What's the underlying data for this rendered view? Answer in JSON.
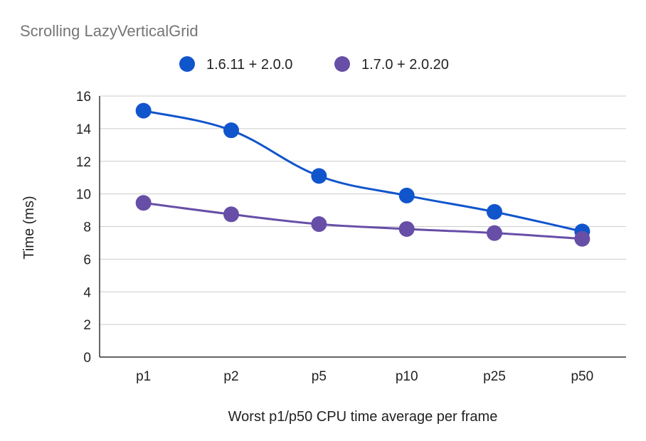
{
  "chart_data": {
    "type": "line",
    "title": "Scrolling LazyVerticalGrid",
    "xlabel": "Worst p1/p50 CPU time average per frame",
    "ylabel": "Time (ms)",
    "categories": [
      "p1",
      "p2",
      "p5",
      "p10",
      "p25",
      "p50"
    ],
    "ylim": [
      0,
      16
    ],
    "yticks": [
      0,
      2,
      4,
      6,
      8,
      10,
      12,
      14,
      16
    ],
    "grid": true,
    "legend_position": "top",
    "series": [
      {
        "name": "1.6.11 + 2.0.0",
        "color": "#1155CC",
        "values": [
          15.1,
          13.9,
          11.1,
          9.9,
          8.9,
          7.7
        ]
      },
      {
        "name": "1.7.0 + 2.0.20",
        "color": "#674EA7",
        "values": [
          9.45,
          8.75,
          8.15,
          7.85,
          7.6,
          7.25
        ]
      }
    ]
  }
}
